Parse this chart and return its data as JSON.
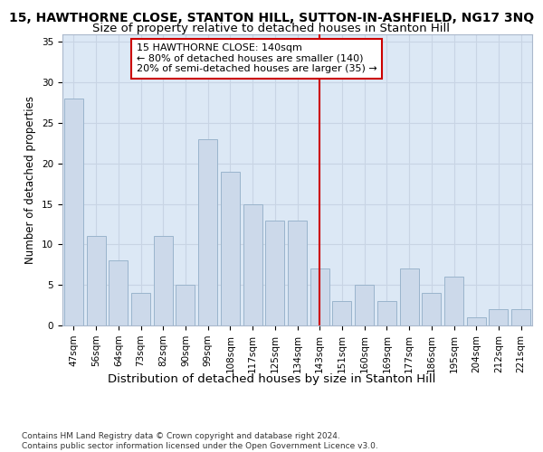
{
  "title": "15, HAWTHORNE CLOSE, STANTON HILL, SUTTON-IN-ASHFIELD, NG17 3NQ",
  "subtitle": "Size of property relative to detached houses in Stanton Hill",
  "xlabel": "Distribution of detached houses by size in Stanton Hill",
  "ylabel": "Number of detached properties",
  "categories": [
    "47sqm",
    "56sqm",
    "64sqm",
    "73sqm",
    "82sqm",
    "90sqm",
    "99sqm",
    "108sqm",
    "117sqm",
    "125sqm",
    "134sqm",
    "143sqm",
    "151sqm",
    "160sqm",
    "169sqm",
    "177sqm",
    "186sqm",
    "195sqm",
    "204sqm",
    "212sqm",
    "221sqm"
  ],
  "values": [
    28,
    11,
    8,
    4,
    11,
    5,
    23,
    19,
    15,
    13,
    13,
    7,
    3,
    5,
    3,
    7,
    4,
    6,
    1,
    2,
    2
  ],
  "bar_color": "#ccd9ea",
  "bar_edgecolor": "#9ab4cc",
  "highlight_index": 11,
  "vline_color": "#cc0000",
  "annotation_text": "15 HAWTHORNE CLOSE: 140sqm\n← 80% of detached houses are smaller (140)\n20% of semi-detached houses are larger (35) →",
  "annotation_box_edgecolor": "#cc0000",
  "grid_color": "#c8d4e4",
  "plot_bg_color": "#dce8f5",
  "ylim": [
    0,
    36
  ],
  "yticks": [
    0,
    5,
    10,
    15,
    20,
    25,
    30,
    35
  ],
  "footer": "Contains HM Land Registry data © Crown copyright and database right 2024.\nContains public sector information licensed under the Open Government Licence v3.0.",
  "title_fontsize": 10,
  "subtitle_fontsize": 9.5,
  "xlabel_fontsize": 9.5,
  "ylabel_fontsize": 8.5,
  "tick_fontsize": 7.5,
  "annotation_fontsize": 8,
  "footer_fontsize": 6.5
}
